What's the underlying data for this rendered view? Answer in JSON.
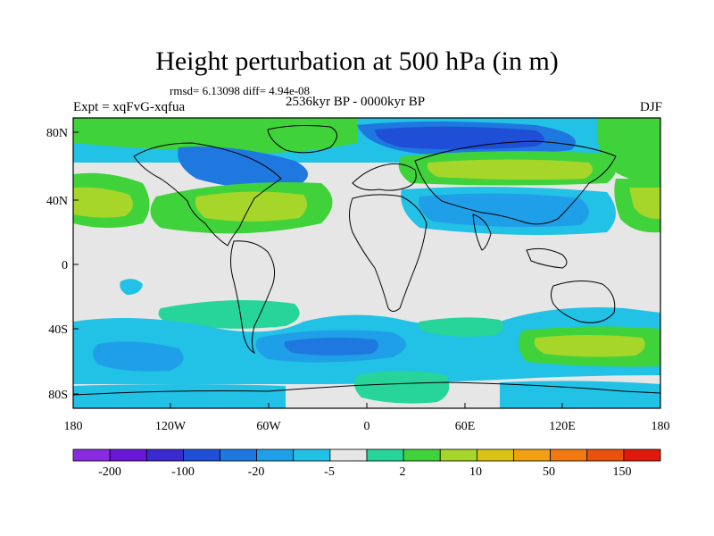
{
  "title": "Height perturbation at 500 hPa (in m)",
  "stats": "rmsd= 6.13098 diff= 4.94e-08",
  "left_label": "Expt = xqFvG-xqfua",
  "center_label": "2536kyr BP - 0000kyr BP",
  "right_label": "DJF",
  "lat_ticks": [
    "80N",
    "40N",
    "0",
    "40S",
    "80S"
  ],
  "lon_ticks": [
    "180",
    "120W",
    "60W",
    "0",
    "60E",
    "120E",
    "180"
  ],
  "colorbar": {
    "labels": [
      "-200",
      "-100",
      "-20",
      "-5",
      "2",
      "10",
      "50",
      "150"
    ],
    "colors": [
      "#8a2be2",
      "#6a18d8",
      "#3a2ad0",
      "#1f4fd6",
      "#1e78e0",
      "#1f9fe8",
      "#22c1e6",
      "#e6e6e6",
      "#27d49a",
      "#3fd23a",
      "#a6d62a",
      "#d8c214",
      "#f0a010",
      "#f07a10",
      "#e8520c",
      "#e01a0a"
    ]
  },
  "field_colors": {
    "neutral": "#e6e6e6",
    "light_blue": "#22c1e6",
    "mid_blue": "#1f9fe8",
    "blue": "#1e78e0",
    "dark_blue": "#1f4fd6",
    "light_green": "#27d49a",
    "green": "#3fd23a",
    "yellow_green": "#a6d62a",
    "yellow": "#d8c214"
  }
}
